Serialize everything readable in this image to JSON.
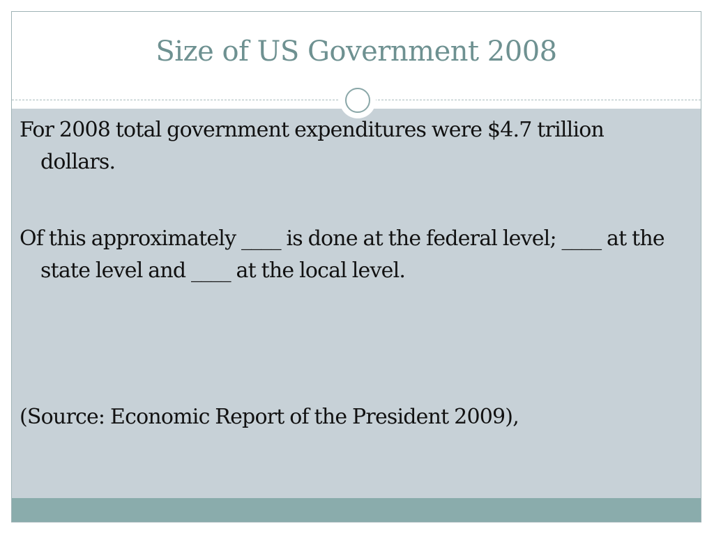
{
  "slide": {
    "title": "Size of US Government 2008",
    "paragraphs": [
      "For 2008 total government expenditures were $4.7 trillion dollars.",
      "Of this approximately ____ is done at the federal level; ____ at the state level and ____ at the local level.",
      "(Source: Economic Report of the President 2009),"
    ]
  },
  "colors": {
    "title_text": "#6e9191",
    "content_background": "#c7d1d7",
    "footer_bar": "#8aacac",
    "frame_border": "#9fb3b6"
  }
}
